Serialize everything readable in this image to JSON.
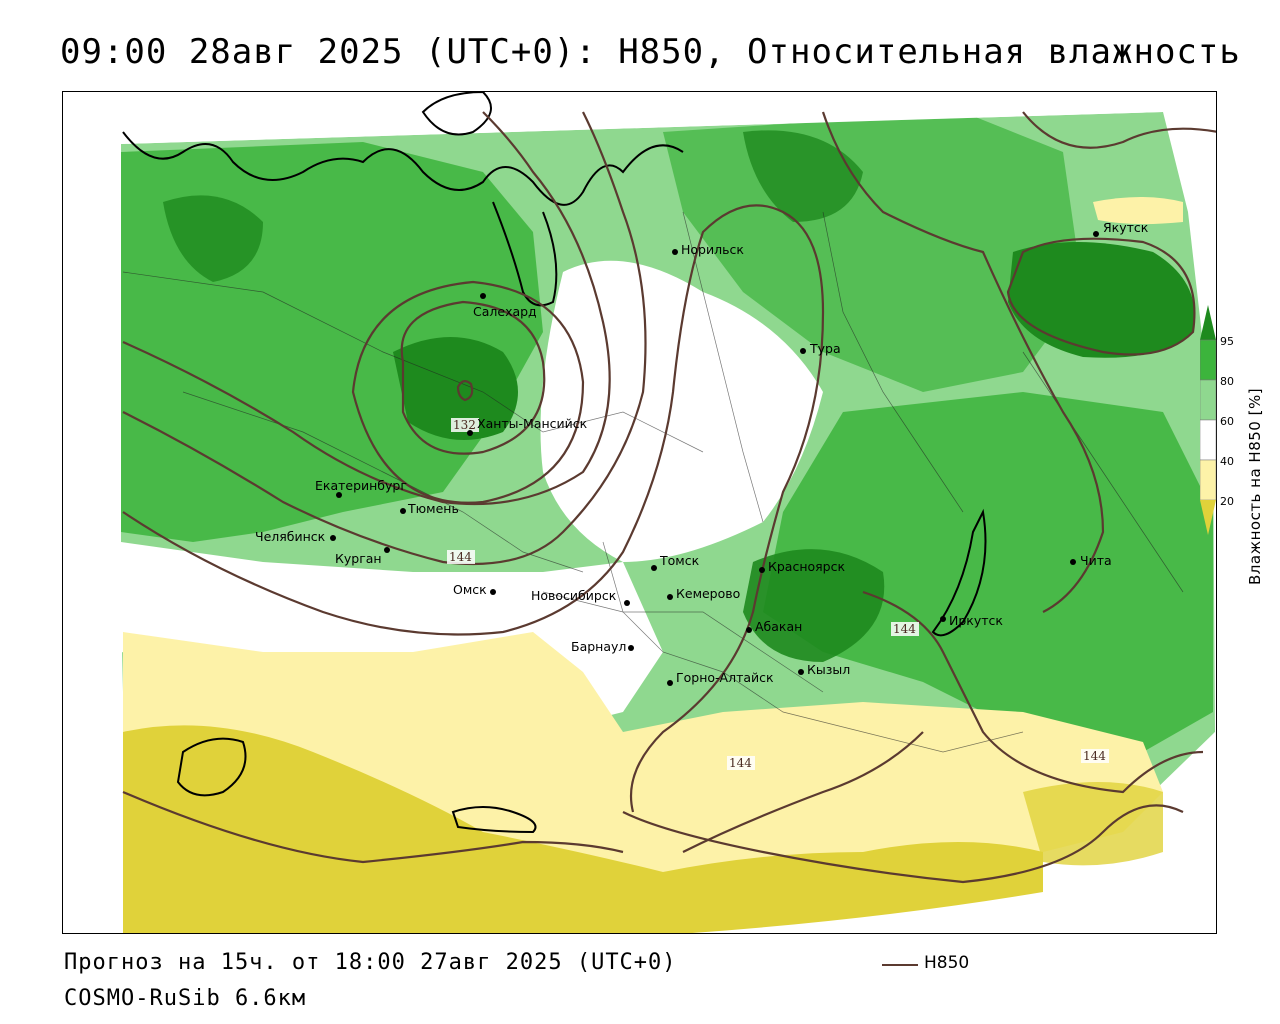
{
  "title": "09:00 28авг 2025 (UTC+0): H850, Относительная влажность",
  "footer": {
    "forecast": "Прогноз на 15ч. от 18:00 27авг 2025 (UTC+0)",
    "model": "COSMO-RuSib 6.6км"
  },
  "legend": {
    "isoline_label": "H850",
    "isoline_color": "#5b3a30"
  },
  "colorbar": {
    "title": "Влажность на H850 [%]",
    "ticks": [
      "95",
      "80",
      "60",
      "40",
      "20"
    ],
    "colors": {
      "c95": "#1e8a1e",
      "c80": "#3cb43c",
      "c60": "#8fd88f",
      "c40": "#ffffff",
      "c20": "#fdf2a8",
      "c0": "#e0d23a"
    }
  },
  "cities": [
    {
      "name": "Якутск"
    },
    {
      "name": "Норильск"
    },
    {
      "name": "Салехард"
    },
    {
      "name": "Тура"
    },
    {
      "name": "Ханты-Мансийск"
    },
    {
      "name": "Екатеринбург"
    },
    {
      "name": "Тюмень"
    },
    {
      "name": "Челябинск"
    },
    {
      "name": "Курган"
    },
    {
      "name": "Омск"
    },
    {
      "name": "Новосибирск"
    },
    {
      "name": "Томск"
    },
    {
      "name": "Кемерово"
    },
    {
      "name": "Красноярск"
    },
    {
      "name": "Барнаул"
    },
    {
      "name": "Абакан"
    },
    {
      "name": "Иркутск"
    },
    {
      "name": "Чита"
    },
    {
      "name": "Горно-Алтайск"
    },
    {
      "name": "Кызыл"
    }
  ],
  "isoline_labels": [
    "132",
    "144",
    "144",
    "144",
    "144"
  ]
}
